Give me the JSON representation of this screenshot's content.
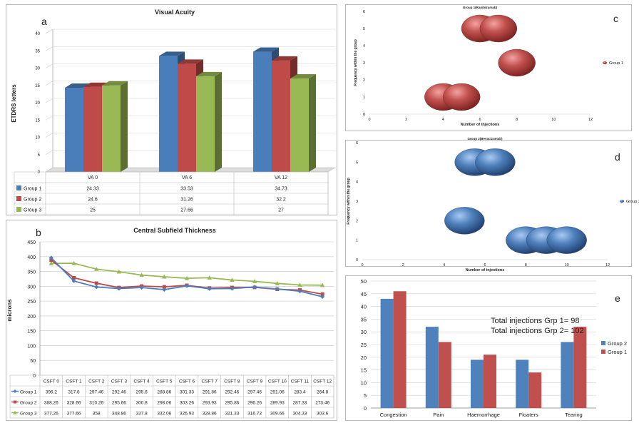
{
  "chart_data": [
    {
      "panel": "a",
      "type": "bar",
      "title": "Visual Acuity",
      "ylabel": "ETDRS letters",
      "ylim": [
        0,
        40
      ],
      "yticks": [
        0,
        5,
        10,
        15,
        20,
        25,
        30,
        35,
        40
      ],
      "categories": [
        "VA 0",
        "VA 6",
        "VA 12"
      ],
      "series": [
        {
          "name": "Group 1",
          "color": "#4a7ebb",
          "values": [
            24.33,
            33.53,
            34.73
          ],
          "labels": [
            "24.33",
            "33.53",
            "34.73"
          ]
        },
        {
          "name": "Group 2",
          "color": "#be4b48",
          "values": [
            24.6,
            31.26,
            32.2
          ],
          "labels": [
            "24.6",
            "31.26",
            "32.2"
          ]
        },
        {
          "name": "Group 3",
          "color": "#98b954",
          "values": [
            25,
            27.66,
            27
          ],
          "labels": [
            "25",
            "27.66",
            "27"
          ]
        }
      ]
    },
    {
      "panel": "b",
      "type": "line",
      "title": "Central Subfield Thickness",
      "ylabel": "microns",
      "ylim": [
        0,
        450
      ],
      "yticks": [
        0,
        50,
        100,
        150,
        200,
        250,
        300,
        350,
        400,
        450
      ],
      "categories": [
        "CSFT 0",
        "CSFT 1",
        "CSFT 2",
        "CSFT 3",
        "CSFT 4",
        "CSFT 5",
        "CSFT 6",
        "CSFT 7",
        "CSFT 8",
        "CSFT 9",
        "CSFT 10",
        "CSFT 11",
        "CSFT 12"
      ],
      "series": [
        {
          "name": "Group 1",
          "color": "#4a7ebb",
          "values": [
            396.2,
            317.8,
            297.46,
            292.46,
            295.6,
            288.86,
            301.33,
            291.86,
            292.46,
            297.46,
            291.06,
            283.4,
            264.8
          ],
          "labels": [
            "396.2",
            "317.8",
            "297.46",
            "292.46",
            "295.6",
            "288.86",
            "301.33",
            "291.86",
            "292.46",
            "297.46",
            "291.06",
            "283.4",
            "264.8"
          ]
        },
        {
          "name": "Group 2",
          "color": "#be4b48",
          "values": [
            388.26,
            328.66,
            310.26,
            295.66,
            300.8,
            298.06,
            303.26,
            293.93,
            295.86,
            296.26,
            289.93,
            287.33,
            273.46
          ],
          "labels": [
            "388.26",
            "328.66",
            "310.26",
            "295.66",
            "300.8",
            "298.06",
            "303.26",
            "293.93",
            "295.86",
            "296.26",
            "289.93",
            "287.33",
            "273.46"
          ]
        },
        {
          "name": "Group 3",
          "color": "#98b954",
          "values": [
            377.26,
            377.66,
            358,
            348.86,
            337.8,
            332.06,
            326.93,
            328.86,
            321.33,
            316.73,
            309.66,
            304.33,
            303.6
          ],
          "labels": [
            "377.26",
            "377.66",
            "358",
            "348.86",
            "337.8",
            "332.06",
            "326.93",
            "328.86",
            "321.33",
            "316.73",
            "309.66",
            "304.33",
            "303.6"
          ]
        }
      ]
    },
    {
      "panel": "c",
      "type": "scatter",
      "title": "Group 1(Ranibizumab)",
      "xlabel": "Number of injections",
      "ylabel": "Frequency within the group",
      "xlim": [
        0,
        12
      ],
      "ylim": [
        0,
        6
      ],
      "xticks": [
        0,
        2,
        4,
        6,
        8,
        10,
        12
      ],
      "yticks": [
        0,
        1,
        2,
        3,
        4,
        5,
        6
      ],
      "series": [
        {
          "name": "Group 1",
          "color": "#c0504d",
          "points": [
            [
              4,
              1
            ],
            [
              5,
              1
            ],
            [
              6,
              5
            ],
            [
              7,
              5
            ],
            [
              8,
              3
            ]
          ]
        }
      ]
    },
    {
      "panel": "d",
      "type": "scatter",
      "title": "Group 2(Bevacizumab)",
      "xlabel": "Number of injections",
      "ylabel": "Frequency within the group",
      "xlim": [
        0,
        12
      ],
      "ylim": [
        0,
        6
      ],
      "xticks": [
        0,
        2,
        4,
        6,
        8,
        10,
        12
      ],
      "yticks": [
        0,
        1,
        2,
        3,
        4,
        5,
        6
      ],
      "series": [
        {
          "name": "Group 2",
          "color": "#4f81bd",
          "points": [
            [
              5,
              2
            ],
            [
              5.5,
              5
            ],
            [
              6.5,
              5
            ],
            [
              8,
              1
            ],
            [
              9,
              1
            ],
            [
              10,
              1
            ]
          ]
        }
      ]
    },
    {
      "panel": "e",
      "type": "bar",
      "ylim": [
        0,
        50
      ],
      "yticks": [
        0,
        5,
        10,
        15,
        20,
        25,
        30,
        35,
        40,
        45,
        50
      ],
      "categories": [
        "Congestion",
        "Pain",
        "Haemorrhage",
        "Floaters",
        "Tearing"
      ],
      "series": [
        {
          "name": "Group 2",
          "color": "#4f81bd",
          "values": [
            43,
            32,
            19,
            19,
            26
          ]
        },
        {
          "name": "Group 1",
          "color": "#c0504d",
          "values": [
            46,
            26,
            21,
            14,
            32
          ]
        }
      ],
      "annotations": [
        "Total injections Grp 1= 98",
        "Total injections Grp 2= 102"
      ]
    }
  ],
  "panel_letters": {
    "a": "a",
    "b": "b",
    "c": "c",
    "d": "d",
    "e": "e"
  }
}
